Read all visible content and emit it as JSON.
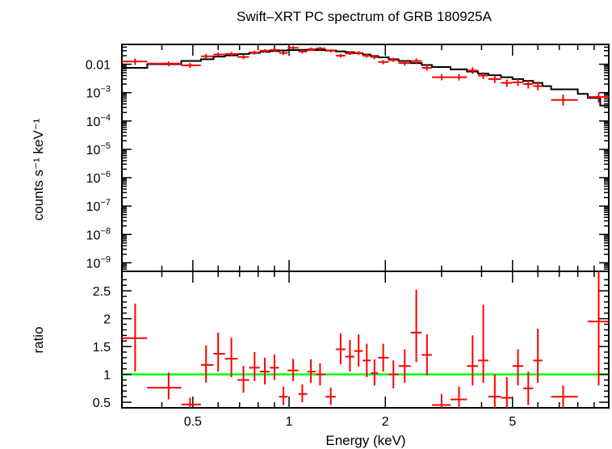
{
  "chart_data": [
    {
      "type": "scatter",
      "title": "Swift–XRT PC spectrum of GRB 180925A",
      "ylabel": "counts s⁻¹ keV⁻¹",
      "xscale": "log",
      "yscale": "log",
      "xlim": [
        0.3,
        10
      ],
      "ylim": [
        5e-10,
        0.05
      ],
      "ytick_labels": [
        {
          "value": 0.01,
          "label": "0.01"
        },
        {
          "value": 0.001,
          "base": "10",
          "exp": "−3"
        },
        {
          "value": 0.0001,
          "base": "10",
          "exp": "−4"
        },
        {
          "value": 1e-05,
          "base": "10",
          "exp": "−5"
        },
        {
          "value": 1e-06,
          "base": "10",
          "exp": "−6"
        },
        {
          "value": 1e-07,
          "base": "10",
          "exp": "−7"
        },
        {
          "value": 1e-08,
          "base": "10",
          "exp": "−8"
        },
        {
          "value": 1e-09,
          "base": "10",
          "exp": "−9"
        }
      ],
      "series": [
        {
          "kind": "data",
          "color": "#ff0000",
          "points": [
            {
              "x": 0.33,
              "xlo": 0.3,
              "xhi": 0.36,
              "y": 0.0125,
              "ylo": 0.0095,
              "yhi": 0.016
            },
            {
              "x": 0.42,
              "xlo": 0.36,
              "xhi": 0.46,
              "y": 0.0105,
              "ylo": 0.0085,
              "yhi": 0.0125
            },
            {
              "x": 0.49,
              "xlo": 0.46,
              "xhi": 0.53,
              "y": 0.0092,
              "ylo": 0.0075,
              "yhi": 0.0112
            },
            {
              "x": 0.55,
              "xlo": 0.53,
              "xhi": 0.58,
              "y": 0.019,
              "ylo": 0.016,
              "yhi": 0.023
            },
            {
              "x": 0.6,
              "xlo": 0.58,
              "xhi": 0.63,
              "y": 0.022,
              "ylo": 0.019,
              "yhi": 0.026
            },
            {
              "x": 0.66,
              "xlo": 0.63,
              "xhi": 0.69,
              "y": 0.023,
              "ylo": 0.02,
              "yhi": 0.027
            },
            {
              "x": 0.72,
              "xlo": 0.69,
              "xhi": 0.75,
              "y": 0.018,
              "ylo": 0.015,
              "yhi": 0.021
            },
            {
              "x": 0.78,
              "xlo": 0.75,
              "xhi": 0.81,
              "y": 0.026,
              "ylo": 0.022,
              "yhi": 0.03
            },
            {
              "x": 0.84,
              "xlo": 0.81,
              "xhi": 0.87,
              "y": 0.03,
              "ylo": 0.026,
              "yhi": 0.034
            },
            {
              "x": 0.9,
              "xlo": 0.87,
              "xhi": 0.93,
              "y": 0.032,
              "ylo": 0.028,
              "yhi": 0.036
            },
            {
              "x": 0.96,
              "xlo": 0.93,
              "xhi": 0.99,
              "y": 0.025,
              "ylo": 0.021,
              "yhi": 0.029
            },
            {
              "x": 1.03,
              "xlo": 0.99,
              "xhi": 1.07,
              "y": 0.038,
              "ylo": 0.033,
              "yhi": 0.043
            },
            {
              "x": 1.1,
              "xlo": 1.07,
              "xhi": 1.14,
              "y": 0.028,
              "ylo": 0.024,
              "yhi": 0.032
            },
            {
              "x": 1.17,
              "xlo": 1.14,
              "xhi": 1.21,
              "y": 0.034,
              "ylo": 0.03,
              "yhi": 0.039
            },
            {
              "x": 1.25,
              "xlo": 1.21,
              "xhi": 1.3,
              "y": 0.036,
              "ylo": 0.031,
              "yhi": 0.041
            },
            {
              "x": 1.35,
              "xlo": 1.3,
              "xhi": 1.4,
              "y": 0.03,
              "ylo": 0.026,
              "yhi": 0.034
            },
            {
              "x": 1.45,
              "xlo": 1.4,
              "xhi": 1.5,
              "y": 0.02,
              "ylo": 0.017,
              "yhi": 0.023
            },
            {
              "x": 1.55,
              "xlo": 1.5,
              "xhi": 1.6,
              "y": 0.024,
              "ylo": 0.021,
              "yhi": 0.028
            },
            {
              "x": 1.65,
              "xlo": 1.6,
              "xhi": 1.7,
              "y": 0.025,
              "ylo": 0.021,
              "yhi": 0.029
            },
            {
              "x": 1.75,
              "xlo": 1.7,
              "xhi": 1.8,
              "y": 0.02,
              "ylo": 0.017,
              "yhi": 0.023
            },
            {
              "x": 1.85,
              "xlo": 1.8,
              "xhi": 1.9,
              "y": 0.018,
              "ylo": 0.015,
              "yhi": 0.021
            },
            {
              "x": 1.97,
              "xlo": 1.9,
              "xhi": 2.05,
              "y": 0.012,
              "ylo": 0.01,
              "yhi": 0.014
            },
            {
              "x": 2.12,
              "xlo": 2.05,
              "xhi": 2.2,
              "y": 0.014,
              "ylo": 0.012,
              "yhi": 0.017
            },
            {
              "x": 2.3,
              "xlo": 2.2,
              "xhi": 2.4,
              "y": 0.011,
              "ylo": 0.009,
              "yhi": 0.013
            },
            {
              "x": 2.5,
              "xlo": 2.4,
              "xhi": 2.6,
              "y": 0.013,
              "ylo": 0.01,
              "yhi": 0.016
            },
            {
              "x": 2.7,
              "xlo": 2.6,
              "xhi": 2.8,
              "y": 0.0075,
              "ylo": 0.006,
              "yhi": 0.0095
            },
            {
              "x": 3.0,
              "xlo": 2.8,
              "xhi": 3.2,
              "y": 0.0035,
              "ylo": 0.0027,
              "yhi": 0.0045
            },
            {
              "x": 3.4,
              "xlo": 3.2,
              "xhi": 3.6,
              "y": 0.0035,
              "ylo": 0.0027,
              "yhi": 0.0045
            },
            {
              "x": 3.75,
              "xlo": 3.6,
              "xhi": 3.9,
              "y": 0.006,
              "ylo": 0.0045,
              "yhi": 0.0078
            },
            {
              "x": 4.05,
              "xlo": 3.9,
              "xhi": 4.2,
              "y": 0.004,
              "ylo": 0.003,
              "yhi": 0.0052
            },
            {
              "x": 4.4,
              "xlo": 4.2,
              "xhi": 4.6,
              "y": 0.003,
              "ylo": 0.0022,
              "yhi": 0.004
            },
            {
              "x": 4.8,
              "xlo": 4.6,
              "xhi": 5.0,
              "y": 0.0022,
              "ylo": 0.0016,
              "yhi": 0.0029
            },
            {
              "x": 5.2,
              "xlo": 5.0,
              "xhi": 5.4,
              "y": 0.0023,
              "ylo": 0.0017,
              "yhi": 0.003
            },
            {
              "x": 5.6,
              "xlo": 5.4,
              "xhi": 5.8,
              "y": 0.002,
              "ylo": 0.0014,
              "yhi": 0.0027
            },
            {
              "x": 6.0,
              "xlo": 5.8,
              "xhi": 6.2,
              "y": 0.0017,
              "ylo": 0.0012,
              "yhi": 0.0024
            },
            {
              "x": 7.2,
              "xlo": 6.6,
              "xhi": 8.0,
              "y": 0.00055,
              "ylo": 0.00035,
              "yhi": 0.00085
            },
            {
              "x": 9.3,
              "xlo": 8.6,
              "xhi": 10.0,
              "y": 0.0007,
              "ylo": 0.00045,
              "yhi": 0.001
            }
          ]
        },
        {
          "kind": "model",
          "color": "#000000",
          "steps": [
            [
              0.3,
              0.0075
            ],
            [
              0.36,
              0.01
            ],
            [
              0.46,
              0.013
            ],
            [
              0.53,
              0.015
            ],
            [
              0.58,
              0.0185
            ],
            [
              0.63,
              0.0205
            ],
            [
              0.69,
              0.023
            ],
            [
              0.75,
              0.025
            ],
            [
              0.81,
              0.0275
            ],
            [
              0.87,
              0.029
            ],
            [
              0.93,
              0.0305
            ],
            [
              0.99,
              0.0315
            ],
            [
              1.07,
              0.032
            ],
            [
              1.14,
              0.032
            ],
            [
              1.21,
              0.0315
            ],
            [
              1.3,
              0.0305
            ],
            [
              1.4,
              0.0285
            ],
            [
              1.5,
              0.0265
            ],
            [
              1.6,
              0.0245
            ],
            [
              1.7,
              0.022
            ],
            [
              1.8,
              0.0195
            ],
            [
              1.9,
              0.0175
            ],
            [
              2.05,
              0.015
            ],
            [
              2.2,
              0.013
            ],
            [
              2.4,
              0.011
            ],
            [
              2.6,
              0.0094
            ],
            [
              2.8,
              0.008
            ],
            [
              3.2,
              0.0066
            ],
            [
              3.6,
              0.0055
            ],
            [
              3.9,
              0.0047
            ],
            [
              4.2,
              0.0041
            ],
            [
              4.6,
              0.0035
            ],
            [
              5.0,
              0.003
            ],
            [
              5.4,
              0.0026
            ],
            [
              5.8,
              0.0022
            ],
            [
              6.2,
              0.0017
            ],
            [
              6.6,
              0.0013
            ],
            [
              8.0,
              0.0009
            ],
            [
              8.6,
              0.00065
            ],
            [
              9.4,
              0.00035
            ],
            [
              10.0,
              0.00035
            ]
          ]
        }
      ]
    },
    {
      "type": "scatter",
      "xlabel": "Energy (keV)",
      "ylabel": "ratio",
      "xscale": "log",
      "xlim": [
        0.3,
        10
      ],
      "ylim": [
        0.4,
        2.85
      ],
      "xticks": [
        0.5,
        1,
        2,
        5
      ],
      "xtick_labels": [
        "0.5",
        "1",
        "2",
        "5"
      ],
      "yticks": [
        0.5,
        1,
        1.5,
        2,
        2.5
      ],
      "ytick_labels": [
        "0.5",
        "1",
        "1.5",
        "2",
        "2.5"
      ],
      "reference_line": {
        "y": 1,
        "color": "#00ff00"
      },
      "series": [
        {
          "kind": "data",
          "color": "#ff0000",
          "points": [
            {
              "x": 0.33,
              "xlo": 0.3,
              "xhi": 0.36,
              "y": 1.65,
              "ylo": 1.05,
              "yhi": 2.27
            },
            {
              "x": 0.42,
              "xlo": 0.36,
              "xhi": 0.46,
              "y": 0.76,
              "ylo": 0.55,
              "yhi": 1.03
            },
            {
              "x": 0.49,
              "xlo": 0.46,
              "xhi": 0.53,
              "y": 0.46,
              "ylo": 0.4,
              "yhi": 0.58
            },
            {
              "x": 0.55,
              "xlo": 0.53,
              "xhi": 0.58,
              "y": 1.17,
              "ylo": 0.85,
              "yhi": 1.52
            },
            {
              "x": 0.6,
              "xlo": 0.58,
              "xhi": 0.63,
              "y": 1.37,
              "ylo": 1.05,
              "yhi": 1.75
            },
            {
              "x": 0.66,
              "xlo": 0.63,
              "xhi": 0.69,
              "y": 1.28,
              "ylo": 0.95,
              "yhi": 1.66
            },
            {
              "x": 0.72,
              "xlo": 0.69,
              "xhi": 0.75,
              "y": 0.9,
              "ylo": 0.67,
              "yhi": 1.15
            },
            {
              "x": 0.78,
              "xlo": 0.75,
              "xhi": 0.81,
              "y": 1.12,
              "ylo": 0.88,
              "yhi": 1.4
            },
            {
              "x": 0.84,
              "xlo": 0.81,
              "xhi": 0.87,
              "y": 1.05,
              "ylo": 0.82,
              "yhi": 1.3
            },
            {
              "x": 0.9,
              "xlo": 0.87,
              "xhi": 0.93,
              "y": 1.12,
              "ylo": 0.9,
              "yhi": 1.36
            },
            {
              "x": 0.96,
              "xlo": 0.93,
              "xhi": 0.99,
              "y": 0.6,
              "ylo": 0.45,
              "yhi": 0.78
            },
            {
              "x": 1.03,
              "xlo": 0.99,
              "xhi": 1.07,
              "y": 1.07,
              "ylo": 0.88,
              "yhi": 1.28
            },
            {
              "x": 1.1,
              "xlo": 1.07,
              "xhi": 1.14,
              "y": 0.65,
              "ylo": 0.5,
              "yhi": 0.82
            },
            {
              "x": 1.17,
              "xlo": 1.14,
              "xhi": 1.21,
              "y": 1.05,
              "ylo": 0.85,
              "yhi": 1.27
            },
            {
              "x": 1.25,
              "xlo": 1.21,
              "xhi": 1.3,
              "y": 1.0,
              "ylo": 0.8,
              "yhi": 1.2
            },
            {
              "x": 1.35,
              "xlo": 1.3,
              "xhi": 1.4,
              "y": 0.6,
              "ylo": 0.45,
              "yhi": 0.76
            },
            {
              "x": 1.45,
              "xlo": 1.4,
              "xhi": 1.5,
              "y": 1.45,
              "ylo": 1.18,
              "yhi": 1.74
            },
            {
              "x": 1.55,
              "xlo": 1.5,
              "xhi": 1.6,
              "y": 1.32,
              "ylo": 1.05,
              "yhi": 1.62
            },
            {
              "x": 1.65,
              "xlo": 1.6,
              "xhi": 1.7,
              "y": 1.42,
              "ylo": 1.14,
              "yhi": 1.72
            },
            {
              "x": 1.75,
              "xlo": 1.7,
              "xhi": 1.8,
              "y": 1.25,
              "ylo": 0.95,
              "yhi": 1.55
            },
            {
              "x": 1.85,
              "xlo": 1.8,
              "xhi": 1.9,
              "y": 1.02,
              "ylo": 0.8,
              "yhi": 1.27
            },
            {
              "x": 1.97,
              "xlo": 1.9,
              "xhi": 2.05,
              "y": 1.3,
              "ylo": 1.05,
              "yhi": 1.55
            },
            {
              "x": 2.12,
              "xlo": 2.05,
              "xhi": 2.2,
              "y": 1.0,
              "ylo": 0.75,
              "yhi": 1.25
            },
            {
              "x": 2.3,
              "xlo": 2.2,
              "xhi": 2.4,
              "y": 1.15,
              "ylo": 0.85,
              "yhi": 1.45
            },
            {
              "x": 2.5,
              "xlo": 2.4,
              "xhi": 2.6,
              "y": 1.75,
              "ylo": 1.22,
              "yhi": 2.52
            },
            {
              "x": 2.7,
              "xlo": 2.6,
              "xhi": 2.8,
              "y": 1.35,
              "ylo": 0.98,
              "yhi": 1.72
            },
            {
              "x": 3.0,
              "xlo": 2.8,
              "xhi": 3.2,
              "y": 0.45,
              "ylo": 0.4,
              "yhi": 0.65
            },
            {
              "x": 3.4,
              "xlo": 3.2,
              "xhi": 3.6,
              "y": 0.55,
              "ylo": 0.4,
              "yhi": 0.78
            },
            {
              "x": 3.75,
              "xlo": 3.6,
              "xhi": 3.9,
              "y": 1.15,
              "ylo": 0.8,
              "yhi": 1.7
            },
            {
              "x": 4.05,
              "xlo": 3.9,
              "xhi": 4.2,
              "y": 1.25,
              "ylo": 0.85,
              "yhi": 2.25
            },
            {
              "x": 4.4,
              "xlo": 4.2,
              "xhi": 4.6,
              "y": 0.6,
              "ylo": 0.4,
              "yhi": 1.0
            },
            {
              "x": 4.8,
              "xlo": 4.6,
              "xhi": 5.0,
              "y": 0.58,
              "ylo": 0.4,
              "yhi": 0.95
            },
            {
              "x": 5.2,
              "xlo": 5.0,
              "xhi": 5.4,
              "y": 1.15,
              "ylo": 0.8,
              "yhi": 1.45
            },
            {
              "x": 5.6,
              "xlo": 5.4,
              "xhi": 5.8,
              "y": 0.75,
              "ylo": 0.45,
              "yhi": 1.05
            },
            {
              "x": 6.0,
              "xlo": 5.8,
              "xhi": 6.2,
              "y": 1.25,
              "ylo": 0.85,
              "yhi": 1.82
            },
            {
              "x": 7.2,
              "xlo": 6.6,
              "xhi": 8.0,
              "y": 0.6,
              "ylo": 0.4,
              "yhi": 0.8
            },
            {
              "x": 9.3,
              "xlo": 8.6,
              "xhi": 10.0,
              "y": 1.95,
              "ylo": 0.8,
              "yhi": 2.85
            }
          ]
        }
      ]
    }
  ]
}
